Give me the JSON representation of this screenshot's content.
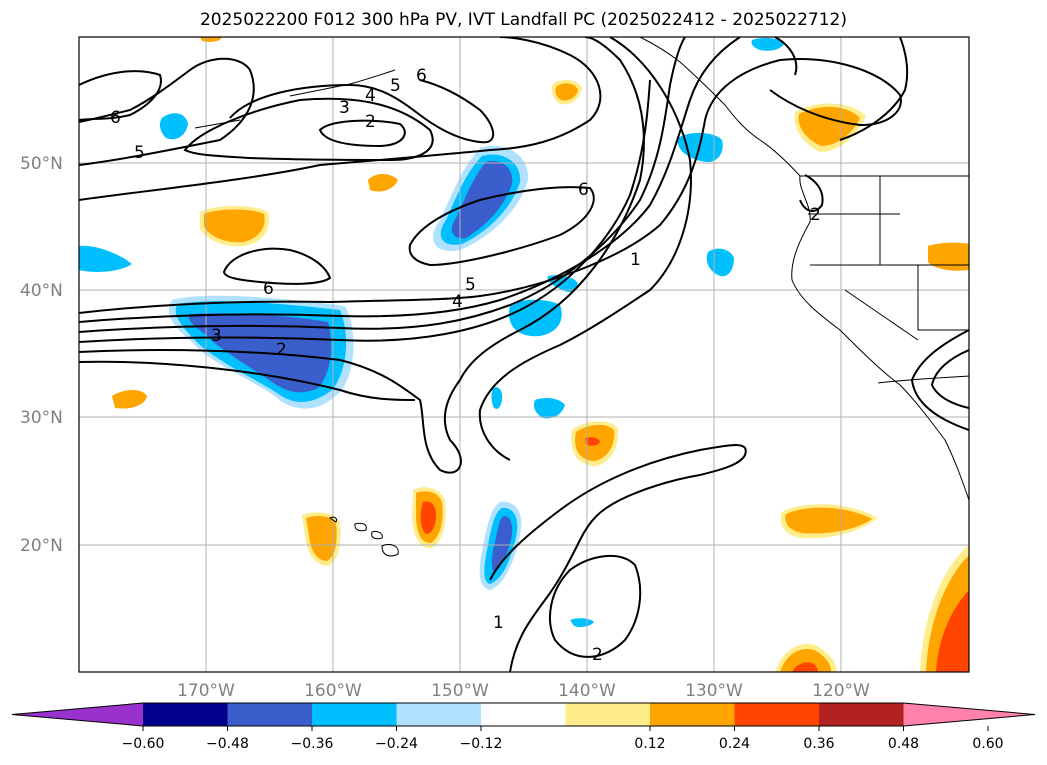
{
  "title": "2025022200 F012 300 hPa PV, IVT Landfall PC (2025022412 - 2025022712)",
  "lat_labels": [
    "50°N",
    "40°N",
    "30°N",
    "20°N"
  ],
  "lon_labels": [
    "170°W",
    "160°W",
    "150°W",
    "140°W",
    "130°W",
    "120°W"
  ],
  "contour_labels": [
    "6",
    "5",
    "3",
    "4",
    "5",
    "6",
    "2",
    "6",
    "6",
    "1",
    "5",
    "4",
    "3",
    "2",
    "2",
    "1",
    "2"
  ],
  "colorbar": {
    "ticks": [
      "−0.60",
      "−0.48",
      "−0.36",
      "−0.24",
      "−0.12",
      "0.12",
      "0.24",
      "0.36",
      "0.48",
      "0.60"
    ],
    "colors": [
      "#9932cc",
      "#00008b",
      "#3a5fcd",
      "#00bfff",
      "#b0e2ff",
      "#ffffff",
      "#ffec8b",
      "#ffa500",
      "#ff4500",
      "#b22222",
      "#ff82ab"
    ]
  },
  "colors": {
    "neg_strong": "#3a5fcd",
    "neg_mid": "#00bfff",
    "neg_weak": "#b0e2ff",
    "pos_weak": "#ffec8b",
    "pos_mid": "#ffa500",
    "pos_strong": "#ff4500",
    "grid": "#b0b0b0"
  }
}
